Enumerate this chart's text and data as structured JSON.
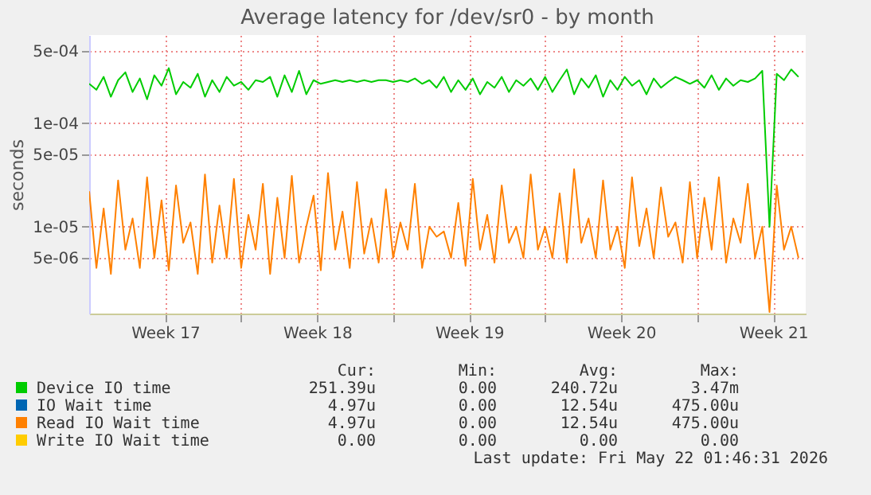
{
  "chart_data": {
    "type": "line",
    "title": "Average latency for /dev/sr0 - by month",
    "ylabel": "seconds",
    "log": "y",
    "grid": true,
    "legend": "bottom",
    "xlim": [
      "2026-04-20T00:00",
      "2026-05-23T00:00"
    ],
    "xticks": [
      {
        "value": "2026-04-23T12:00",
        "label": "Week 17"
      },
      {
        "value": "2026-04-27T00:00",
        "label": null
      },
      {
        "value": "2026-04-30T12:00",
        "label": "Week 18"
      },
      {
        "value": "2026-05-04T00:00",
        "label": null
      },
      {
        "value": "2026-05-07T12:00",
        "label": "Week 19"
      },
      {
        "value": "2026-05-11T00:00",
        "label": null
      },
      {
        "value": "2026-05-14T12:00",
        "label": "Week 20"
      },
      {
        "value": "2026-05-18T00:00",
        "label": null
      },
      {
        "value": "2026-05-21T12:00",
        "label": "Week 21"
      }
    ],
    "ylim": [
      1.45e-06,
      0.00071
    ],
    "yticks": [
      {
        "value": 5e-06,
        "label": "5e-06"
      },
      {
        "value": 1e-05,
        "label": "1e-05"
      },
      {
        "value": 5e-05,
        "label": "5e-05"
      },
      {
        "value": 0.0001,
        "label": "1e-04"
      },
      {
        "value": 0.0005,
        "label": "5e-04"
      }
    ],
    "x": [
      "2026-04-20T00:00",
      "2026-04-20T08:00",
      "2026-04-20T16:00",
      "2026-04-21T00:00",
      "2026-04-21T08:00",
      "2026-04-21T16:00",
      "2026-04-22T00:00",
      "2026-04-22T08:00",
      "2026-04-22T16:00",
      "2026-04-23T00:00",
      "2026-04-23T08:00",
      "2026-04-23T16:00",
      "2026-04-24T00:00",
      "2026-04-24T08:00",
      "2026-04-24T16:00",
      "2026-04-25T00:00",
      "2026-04-25T08:00",
      "2026-04-25T16:00",
      "2026-04-26T00:00",
      "2026-04-26T08:00",
      "2026-04-26T16:00",
      "2026-04-27T00:00",
      "2026-04-27T08:00",
      "2026-04-27T16:00",
      "2026-04-28T00:00",
      "2026-04-28T08:00",
      "2026-04-28T16:00",
      "2026-04-29T00:00",
      "2026-04-29T08:00",
      "2026-04-29T16:00",
      "2026-04-30T00:00",
      "2026-04-30T08:00",
      "2026-04-30T16:00",
      "2026-05-01T00:00",
      "2026-05-01T08:00",
      "2026-05-01T16:00",
      "2026-05-02T00:00",
      "2026-05-02T08:00",
      "2026-05-02T16:00",
      "2026-05-03T00:00",
      "2026-05-03T08:00",
      "2026-05-03T16:00",
      "2026-05-04T00:00",
      "2026-05-04T08:00",
      "2026-05-04T16:00",
      "2026-05-05T00:00",
      "2026-05-05T08:00",
      "2026-05-05T16:00",
      "2026-05-06T00:00",
      "2026-05-06T08:00",
      "2026-05-06T16:00",
      "2026-05-07T00:00",
      "2026-05-07T08:00",
      "2026-05-07T16:00",
      "2026-05-08T00:00",
      "2026-05-08T08:00",
      "2026-05-08T16:00",
      "2026-05-09T00:00",
      "2026-05-09T08:00",
      "2026-05-09T16:00",
      "2026-05-10T00:00",
      "2026-05-10T08:00",
      "2026-05-10T16:00",
      "2026-05-11T00:00",
      "2026-05-11T08:00",
      "2026-05-11T16:00",
      "2026-05-12T00:00",
      "2026-05-12T08:00",
      "2026-05-12T16:00",
      "2026-05-13T00:00",
      "2026-05-13T08:00",
      "2026-05-13T16:00",
      "2026-05-14T00:00",
      "2026-05-14T08:00",
      "2026-05-14T16:00",
      "2026-05-15T00:00",
      "2026-05-15T08:00",
      "2026-05-15T16:00",
      "2026-05-16T00:00",
      "2026-05-16T08:00",
      "2026-05-16T16:00",
      "2026-05-17T00:00",
      "2026-05-17T08:00",
      "2026-05-17T16:00",
      "2026-05-18T00:00",
      "2026-05-18T08:00",
      "2026-05-18T16:00",
      "2026-05-19T00:00",
      "2026-05-19T08:00",
      "2026-05-19T16:00",
      "2026-05-20T00:00",
      "2026-05-20T08:00",
      "2026-05-20T16:00",
      "2026-05-21T00:00",
      "2026-05-21T08:00",
      "2026-05-21T16:00",
      "2026-05-22T00:00",
      "2026-05-22T08:00",
      "2026-05-22T16:00"
    ],
    "series": [
      {
        "name": "Device IO time",
        "color": "#00cc00",
        "values": [
          0.00024,
          0.00021,
          0.00028,
          0.00018,
          0.00026,
          0.00031,
          0.0002,
          0.00027,
          0.00017,
          0.00029,
          0.00023,
          0.00034,
          0.00019,
          0.00025,
          0.00022,
          0.0003,
          0.00018,
          0.00026,
          0.0002,
          0.00028,
          0.00023,
          0.00025,
          0.00021,
          0.00026,
          0.00025,
          0.00028,
          0.00018,
          0.00029,
          0.0002,
          0.00032,
          0.00019,
          0.00026,
          0.00024,
          0.00025,
          0.00026,
          0.00025,
          0.00026,
          0.00025,
          0.00026,
          0.00025,
          0.00026,
          0.00026,
          0.00025,
          0.00026,
          0.00025,
          0.00027,
          0.00024,
          0.00026,
          0.00022,
          0.00028,
          0.0002,
          0.00026,
          0.00021,
          0.00027,
          0.00019,
          0.00025,
          0.00022,
          0.00028,
          0.0002,
          0.00026,
          0.00023,
          0.00027,
          0.00021,
          0.00028,
          0.0002,
          0.00026,
          0.00033,
          0.00019,
          0.00027,
          0.00022,
          0.00029,
          0.00018,
          0.00026,
          0.00021,
          0.00028,
          0.00023,
          0.00026,
          0.00019,
          0.00027,
          0.00022,
          0.00025,
          0.00028,
          0.00026,
          0.00024,
          0.00026,
          0.00022,
          0.00029,
          0.00021,
          0.00027,
          0.00023,
          0.00026,
          0.00025,
          0.00027,
          0.00032,
          1e-05,
          0.0003,
          0.00026,
          0.00033,
          0.00028
        ]
      },
      {
        "name": "IO Wait time",
        "color": "#0066b3",
        "values": [
          null,
          null,
          null,
          null,
          null,
          null,
          null,
          null,
          null,
          null,
          null,
          null,
          null,
          null,
          null,
          null,
          null,
          null,
          null,
          null,
          null,
          null,
          null,
          null,
          null,
          null,
          null,
          null,
          null,
          null,
          null,
          null,
          null,
          null,
          null,
          null,
          null,
          null,
          null,
          null,
          null,
          null,
          null,
          null,
          null,
          null,
          null,
          null,
          null,
          null,
          null,
          null,
          null,
          null,
          null,
          null,
          null,
          null,
          null,
          null,
          null,
          null,
          null,
          null,
          null,
          null,
          null,
          null,
          null,
          null,
          null,
          null,
          null,
          null,
          null,
          null,
          null,
          null,
          null,
          null,
          null,
          null,
          null,
          null,
          null,
          null,
          null,
          null,
          null,
          null,
          null,
          null,
          null,
          null,
          null,
          null,
          null,
          null,
          null
        ]
      },
      {
        "name": "Read IO Wait time",
        "color": "#ff8000",
        "values": [
          2.2e-05,
          4e-06,
          1.5e-05,
          3.5e-06,
          2.8e-05,
          6e-06,
          1.2e-05,
          4e-06,
          3e-05,
          5e-06,
          1.8e-05,
          3.8e-06,
          2.5e-05,
          7e-06,
          1.1e-05,
          3.5e-06,
          3.2e-05,
          4.5e-06,
          1.6e-05,
          5e-06,
          2.9e-05,
          4e-06,
          1.3e-05,
          6e-06,
          2.6e-05,
          3.5e-06,
          1.9e-05,
          5e-06,
          3.1e-05,
          4.5e-06,
          1e-05,
          2e-05,
          3.8e-06,
          3.3e-05,
          6e-06,
          1.4e-05,
          4e-06,
          2.7e-05,
          5.5e-06,
          1.2e-05,
          4.5e-06,
          2.3e-05,
          5e-06,
          1.1e-05,
          6e-06,
          2.6e-05,
          4e-06,
          1e-05,
          8e-06,
          9e-06,
          5e-06,
          1.7e-05,
          4.2e-06,
          2.9e-05,
          6e-06,
          1.3e-05,
          4.5e-06,
          2.5e-05,
          7e-06,
          1e-05,
          5e-06,
          3.2e-05,
          6e-06,
          1e-05,
          5e-06,
          2.1e-05,
          4.5e-06,
          3.6e-05,
          7e-06,
          1.2e-05,
          5e-06,
          2.8e-05,
          6e-06,
          1e-05,
          4e-06,
          3e-05,
          6.5e-06,
          1.5e-05,
          5e-06,
          2.4e-05,
          8e-06,
          1.1e-05,
          4.5e-06,
          2.7e-05,
          5e-06,
          1.9e-05,
          6e-06,
          3e-05,
          4.5e-06,
          1.2e-05,
          7e-06,
          2.6e-05,
          5e-06,
          1e-05,
          1.5e-06,
          2.5e-05,
          6e-06,
          1e-05,
          5e-06
        ]
      },
      {
        "name": "Write IO Wait time",
        "color": "#ffcc00",
        "values": [
          null,
          null,
          null,
          null,
          null,
          null,
          null,
          null,
          null,
          null,
          null,
          null,
          null,
          null,
          null,
          null,
          null,
          null,
          null,
          null,
          null,
          null,
          null,
          null,
          null,
          null,
          null,
          null,
          null,
          null,
          null,
          null,
          null,
          null,
          null,
          null,
          null,
          null,
          null,
          null,
          null,
          null,
          null,
          null,
          null,
          null,
          null,
          null,
          null,
          null,
          null,
          null,
          null,
          null,
          null,
          null,
          null,
          null,
          null,
          null,
          null,
          null,
          null,
          null,
          null,
          null,
          null,
          null,
          null,
          null,
          null,
          null,
          null,
          null,
          null,
          null,
          null,
          null,
          null,
          null,
          null,
          null,
          null,
          null,
          null,
          null,
          null,
          null,
          null,
          null,
          null,
          null,
          null,
          null,
          null,
          null,
          null,
          null,
          null
        ]
      }
    ],
    "annotations": [
      "Cur:",
      "Min:",
      "Avg:",
      "Max:",
      "251.39u",
      "0.00",
      "240.72u",
      "3.47m",
      "4.97u",
      "0.00",
      "12.54u",
      "475.00u",
      "4.97u",
      "0.00",
      "12.54u",
      "475.00u",
      "0.00",
      "0.00",
      "0.00",
      "0.00",
      "Last update: Fri May 22 01:46:31 2026"
    ]
  }
}
